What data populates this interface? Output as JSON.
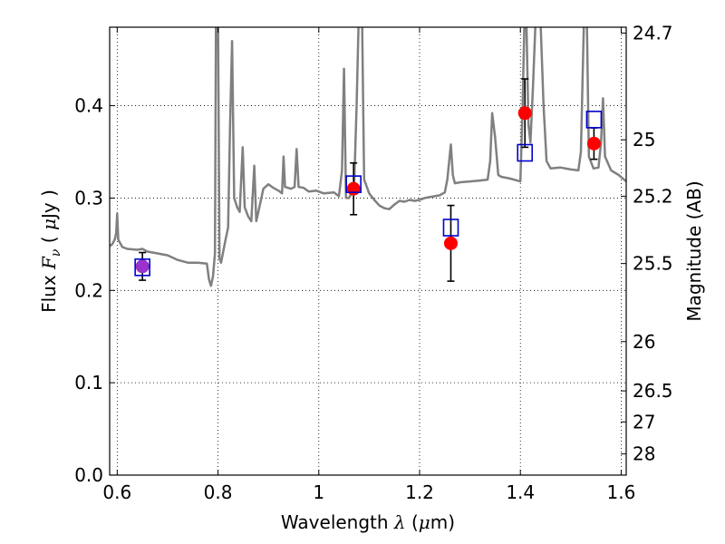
{
  "chart_data": {
    "type": "scatter",
    "xlabel": "Wavelength  λ (μm)",
    "xlabel_parts": {
      "text": "Wavelength  ",
      "symbol": "λ",
      "unit_open": " (",
      "unit_mu": "μ",
      "unit_rest": "m)"
    },
    "ylabel_parts": {
      "text": "Flux  ",
      "symbol_main": "F",
      "symbol_sub": "ν",
      "unit_open": "  ( ",
      "unit_mu": "μ",
      "unit_rest": "Jy )"
    },
    "y2label": "Magnitude (AB)",
    "xlim": [
      0.585,
      1.61
    ],
    "ylim": [
      0.0,
      0.485
    ],
    "grid": true,
    "x_ticks": [
      {
        "value": 0.6,
        "label": "0.6"
      },
      {
        "value": 0.8,
        "label": "0.8"
      },
      {
        "value": 1.0,
        "label": "1"
      },
      {
        "value": 1.2,
        "label": "1.2"
      },
      {
        "value": 1.4,
        "label": "1.4"
      },
      {
        "value": 1.6,
        "label": "1.6"
      }
    ],
    "y_ticks": [
      {
        "value": 0.0,
        "label": "0.0"
      },
      {
        "value": 0.1,
        "label": "0.1"
      },
      {
        "value": 0.2,
        "label": "0.2"
      },
      {
        "value": 0.3,
        "label": "0.3"
      },
      {
        "value": 0.4,
        "label": "0.4"
      }
    ],
    "mag_ticks": [
      {
        "value": 24.7,
        "label": "24.7"
      },
      {
        "value": 25.0,
        "label": "25"
      },
      {
        "value": 25.2,
        "label": "25.2"
      },
      {
        "value": 25.5,
        "label": "25.5"
      },
      {
        "value": 26.0,
        "label": "26"
      },
      {
        "value": 26.5,
        "label": "26.5"
      },
      {
        "value": 27.0,
        "label": "27"
      },
      {
        "value": 28.0,
        "label": "28"
      }
    ],
    "spectrum": {
      "color": "#808080",
      "points": [
        [
          0.585,
          0.248
        ],
        [
          0.59,
          0.25
        ],
        [
          0.595,
          0.255
        ],
        [
          0.598,
          0.262
        ],
        [
          0.6,
          0.283
        ],
        [
          0.602,
          0.255
        ],
        [
          0.61,
          0.247
        ],
        [
          0.62,
          0.245
        ],
        [
          0.64,
          0.244
        ],
        [
          0.65,
          0.245
        ],
        [
          0.66,
          0.242
        ],
        [
          0.68,
          0.24
        ],
        [
          0.7,
          0.238
        ],
        [
          0.72,
          0.233
        ],
        [
          0.74,
          0.23
        ],
        [
          0.76,
          0.23
        ],
        [
          0.778,
          0.229
        ],
        [
          0.782,
          0.212
        ],
        [
          0.786,
          0.205
        ],
        [
          0.79,
          0.215
        ],
        [
          0.794,
          0.24
        ],
        [
          0.796,
          0.49
        ],
        [
          0.8,
          0.49
        ],
        [
          0.803,
          0.235
        ],
        [
          0.806,
          0.23
        ],
        [
          0.815,
          0.255
        ],
        [
          0.82,
          0.268
        ],
        [
          0.824,
          0.38
        ],
        [
          0.828,
          0.47
        ],
        [
          0.832,
          0.3
        ],
        [
          0.838,
          0.29
        ],
        [
          0.843,
          0.285
        ],
        [
          0.849,
          0.355
        ],
        [
          0.853,
          0.29
        ],
        [
          0.86,
          0.28
        ],
        [
          0.866,
          0.275
        ],
        [
          0.872,
          0.335
        ],
        [
          0.876,
          0.275
        ],
        [
          0.882,
          0.29
        ],
        [
          0.89,
          0.31
        ],
        [
          0.9,
          0.315
        ],
        [
          0.91,
          0.311
        ],
        [
          0.92,
          0.308
        ],
        [
          0.927,
          0.305
        ],
        [
          0.93,
          0.345
        ],
        [
          0.933,
          0.312
        ],
        [
          0.945,
          0.31
        ],
        [
          0.952,
          0.312
        ],
        [
          0.956,
          0.353
        ],
        [
          0.96,
          0.312
        ],
        [
          0.97,
          0.311
        ],
        [
          0.98,
          0.307
        ],
        [
          0.995,
          0.308
        ],
        [
          1.01,
          0.305
        ],
        [
          1.03,
          0.306
        ],
        [
          1.04,
          0.302
        ],
        [
          1.046,
          0.33
        ],
        [
          1.05,
          0.44
        ],
        [
          1.054,
          0.3
        ],
        [
          1.06,
          0.3
        ],
        [
          1.07,
          0.31
        ],
        [
          1.075,
          0.4
        ],
        [
          1.079,
          0.49
        ],
        [
          1.086,
          0.49
        ],
        [
          1.09,
          0.32
        ],
        [
          1.1,
          0.305
        ],
        [
          1.11,
          0.298
        ],
        [
          1.12,
          0.292
        ],
        [
          1.13,
          0.289
        ],
        [
          1.14,
          0.288
        ],
        [
          1.15,
          0.293
        ],
        [
          1.16,
          0.297
        ],
        [
          1.17,
          0.296
        ],
        [
          1.18,
          0.298
        ],
        [
          1.19,
          0.297
        ],
        [
          1.2,
          0.298
        ],
        [
          1.21,
          0.3
        ],
        [
          1.22,
          0.301
        ],
        [
          1.23,
          0.302
        ],
        [
          1.24,
          0.303
        ],
        [
          1.25,
          0.306
        ],
        [
          1.255,
          0.32
        ],
        [
          1.262,
          0.358
        ],
        [
          1.266,
          0.325
        ],
        [
          1.27,
          0.316
        ],
        [
          1.28,
          0.317
        ],
        [
          1.3,
          0.318
        ],
        [
          1.32,
          0.319
        ],
        [
          1.335,
          0.32
        ],
        [
          1.34,
          0.34
        ],
        [
          1.344,
          0.392
        ],
        [
          1.35,
          0.365
        ],
        [
          1.356,
          0.325
        ],
        [
          1.362,
          0.323
        ],
        [
          1.38,
          0.321
        ],
        [
          1.4,
          0.318
        ],
        [
          1.404,
          0.39
        ],
        [
          1.408,
          0.49
        ],
        [
          1.412,
          0.49
        ],
        [
          1.416,
          0.38
        ],
        [
          1.42,
          0.36
        ],
        [
          1.425,
          0.42
        ],
        [
          1.43,
          0.49
        ],
        [
          1.44,
          0.49
        ],
        [
          1.446,
          0.4
        ],
        [
          1.452,
          0.34
        ],
        [
          1.46,
          0.332
        ],
        [
          1.48,
          0.333
        ],
        [
          1.5,
          0.331
        ],
        [
          1.515,
          0.33
        ],
        [
          1.52,
          0.35
        ],
        [
          1.526,
          0.49
        ],
        [
          1.532,
          0.49
        ],
        [
          1.536,
          0.345
        ],
        [
          1.545,
          0.332
        ],
        [
          1.555,
          0.333
        ],
        [
          1.56,
          0.36
        ],
        [
          1.564,
          0.408
        ],
        [
          1.568,
          0.345
        ],
        [
          1.58,
          0.33
        ],
        [
          1.595,
          0.325
        ],
        [
          1.61,
          0.318
        ]
      ]
    },
    "model_points": {
      "name_marker": "open square",
      "color": "#0000cc",
      "points": [
        [
          0.65,
          0.225
        ],
        [
          1.069,
          0.315
        ],
        [
          1.262,
          0.268
        ],
        [
          1.409,
          0.349
        ],
        [
          1.546,
          0.385
        ]
      ]
    },
    "observed_points": {
      "name_marker": "filled circle",
      "color": "#ff0000",
      "points": [
        {
          "x": 0.65,
          "y": 0.226,
          "err": 0.015,
          "color": "#9933cc"
        },
        {
          "x": 1.069,
          "y": 0.31,
          "err": 0.028,
          "color": "#ff0000"
        },
        {
          "x": 1.262,
          "y": 0.251,
          "err": 0.041,
          "color": "#ff0000"
        },
        {
          "x": 1.409,
          "y": 0.392,
          "err": 0.037,
          "color": "#ff0000"
        },
        {
          "x": 1.546,
          "y": 0.359,
          "err": 0.017,
          "color": "#ff0000"
        }
      ]
    }
  }
}
